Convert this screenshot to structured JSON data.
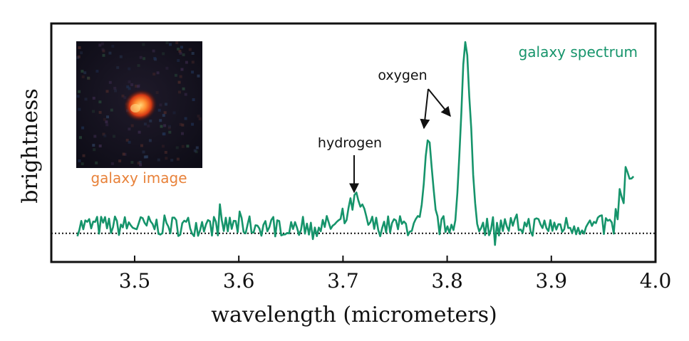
{
  "chart_data": {
    "type": "line",
    "xlabel": "wavelength (micrometers)",
    "ylabel": "brightness",
    "xlim": [
      3.42,
      4.0
    ],
    "ylim": [
      -0.15,
      1.1
    ],
    "xticks": [
      3.5,
      3.6,
      3.7,
      3.8,
      3.9,
      4.0
    ],
    "xtick_labels": [
      "3.5",
      "3.6",
      "3.7",
      "3.8",
      "3.9",
      "4.0"
    ],
    "baseline": 0.0,
    "grid": false,
    "series": [
      {
        "name": "galaxy spectrum",
        "color": "#16946b",
        "x_range": [
          3.445,
          3.98
        ],
        "step": 0.0019,
        "noise_amplitude": 0.055,
        "peaks": [
          {
            "x": 3.712,
            "height": 0.13,
            "width": 0.006
          },
          {
            "x": 3.782,
            "height": 0.42,
            "width": 0.0035
          },
          {
            "x": 3.818,
            "height": 0.92,
            "width": 0.0045
          },
          {
            "x": 3.977,
            "height": 0.26,
            "width": 0.007
          }
        ]
      }
    ],
    "annotations": [
      {
        "text": "hydrogen",
        "target_x": 3.712,
        "target_y": 0.2
      },
      {
        "text": "oxygen",
        "target_x": 3.782,
        "target_y": 0.52
      },
      {
        "text": "oxygen",
        "target_x": 3.808,
        "target_y": 0.6
      }
    ],
    "legend": {
      "text": "galaxy spectrum",
      "placement": "top-right",
      "color": "#16946b"
    },
    "inset": {
      "caption": "galaxy image",
      "caption_color": "#e8823a",
      "placement": "top-left"
    }
  }
}
